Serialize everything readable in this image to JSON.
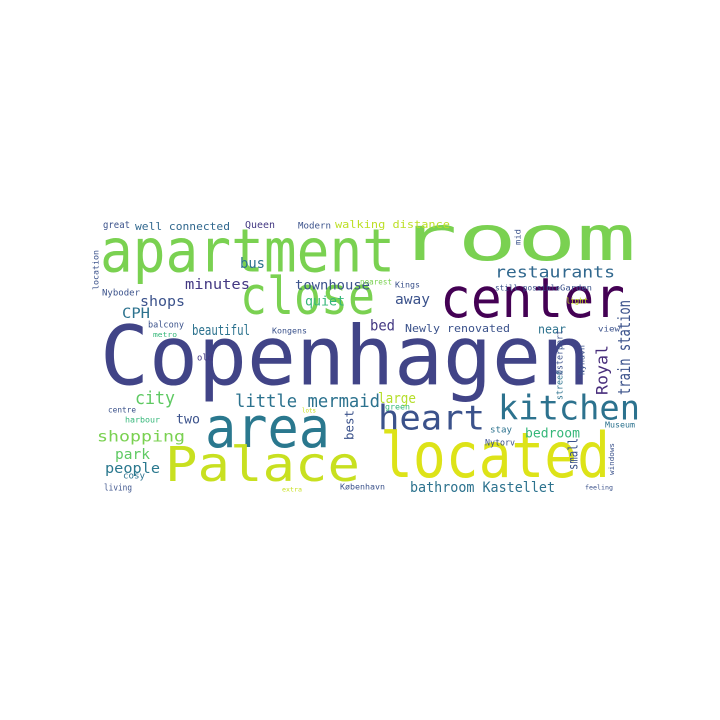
{
  "chart_data": {
    "type": "wordcloud",
    "words": [
      {
        "text": "Copenhagen",
        "size": 82,
        "color": "#414487",
        "vertical": false
      },
      {
        "text": "apartment",
        "size": 60,
        "color": "#7ad151",
        "vertical": false
      },
      {
        "text": "room",
        "size": 62,
        "color": "#7ad151",
        "vertical": false
      },
      {
        "text": "located",
        "size": 62,
        "color": "#dde318",
        "vertical": false
      },
      {
        "text": "center",
        "size": 55,
        "color": "#440154",
        "vertical": false
      },
      {
        "text": "close",
        "size": 52,
        "color": "#7ad151",
        "vertical": false
      },
      {
        "text": "area",
        "size": 56,
        "color": "#2a788e",
        "vertical": false
      },
      {
        "text": "Palace",
        "size": 48,
        "color": "#c8e020",
        "vertical": false
      },
      {
        "text": "kitchen",
        "size": 34,
        "color": "#2c728e",
        "vertical": false
      },
      {
        "text": "heart",
        "size": 34,
        "color": "#3b528b",
        "vertical": false
      },
      {
        "text": "little mermaid",
        "size": 18,
        "color": "#2c728e",
        "vertical": false
      },
      {
        "text": "restaurants",
        "size": 16,
        "color": "#31688e",
        "vertical": false
      },
      {
        "text": "train station",
        "size": 17,
        "color": "#3b528b",
        "vertical": true
      },
      {
        "text": "Royal",
        "size": 16,
        "color": "#472d7b",
        "vertical": true
      },
      {
        "text": "bathroom Kastellet",
        "size": 14,
        "color": "#2c728e",
        "vertical": false
      },
      {
        "text": "shopping",
        "size": 15,
        "color": "#7ad151",
        "vertical": false
      },
      {
        "text": "city",
        "size": 18,
        "color": "#5ec962",
        "vertical": false
      },
      {
        "text": "people",
        "size": 14,
        "color": "#2a788e",
        "vertical": false
      },
      {
        "text": "park",
        "size": 14,
        "color": "#5ec962",
        "vertical": false
      },
      {
        "text": "minutes",
        "size": 14,
        "color": "#443983",
        "vertical": false
      },
      {
        "text": "townhouse",
        "size": 13,
        "color": "#3b528b",
        "vertical": false
      },
      {
        "text": "walking distance",
        "size": 11,
        "color": "#bddf26",
        "vertical": false
      },
      {
        "text": "well connected",
        "size": 11,
        "color": "#31688e",
        "vertical": false
      },
      {
        "text": "beautiful",
        "size": 14,
        "color": "#2c728e",
        "vertical": false
      },
      {
        "text": "shops",
        "size": 14,
        "color": "#3b528b",
        "vertical": false
      },
      {
        "text": "bus",
        "size": 14,
        "color": "#2c728e",
        "vertical": false
      },
      {
        "text": "quiet",
        "size": 13,
        "color": "#35b779",
        "vertical": false
      },
      {
        "text": "away",
        "size": 14,
        "color": "#3b528b",
        "vertical": false
      },
      {
        "text": "bed",
        "size": 15,
        "color": "#443983",
        "vertical": false
      },
      {
        "text": "Newly renovated",
        "size": 11,
        "color": "#3b528b",
        "vertical": false
      },
      {
        "text": "CPH",
        "size": 14,
        "color": "#2c728e",
        "vertical": false
      },
      {
        "text": "large",
        "size": 14,
        "color": "#b5de2b",
        "vertical": false
      },
      {
        "text": "near",
        "size": 12,
        "color": "#2c728e",
        "vertical": false
      },
      {
        "text": "bedroom",
        "size": 13,
        "color": "#35b779",
        "vertical": false
      },
      {
        "text": "small",
        "size": 13,
        "color": "#3b528b",
        "vertical": true
      },
      {
        "text": "two",
        "size": 13,
        "color": "#3b528b",
        "vertical": false
      },
      {
        "text": "best",
        "size": 12,
        "color": "#3b528b",
        "vertical": true
      },
      {
        "text": "Queen",
        "size": 10,
        "color": "#443983",
        "vertical": false
      },
      {
        "text": "Modern",
        "size": 9,
        "color": "#3b528b",
        "vertical": false
      },
      {
        "text": "great",
        "size": 10,
        "color": "#3b528b",
        "vertical": false
      },
      {
        "text": "Nyboder",
        "size": 9,
        "color": "#3b528b",
        "vertical": false
      },
      {
        "text": "balcony",
        "size": 9,
        "color": "#3b528b",
        "vertical": false
      },
      {
        "text": "living",
        "size": 9,
        "color": "#3b528b",
        "vertical": false
      },
      {
        "text": "cosy",
        "size": 9,
        "color": "#2c728e",
        "vertical": false
      },
      {
        "text": "centre",
        "size": 8,
        "color": "#3b528b",
        "vertical": false
      },
      {
        "text": "harbour",
        "size": 8,
        "color": "#35b779",
        "vertical": false
      },
      {
        "text": "old",
        "size": 9,
        "color": "#443983",
        "vertical": false
      },
      {
        "text": "Museum",
        "size": 8,
        "color": "#2c728e",
        "vertical": false
      },
      {
        "text": "stay",
        "size": 9,
        "color": "#2c728e",
        "vertical": false
      },
      {
        "text": "street",
        "size": 9,
        "color": "#2c728e",
        "vertical": true
      },
      {
        "text": "Nytorv",
        "size": 9,
        "color": "#3b528b",
        "vertical": false
      },
      {
        "text": "København",
        "size": 8,
        "color": "#3b528b",
        "vertical": false
      },
      {
        "text": "green",
        "size": 8,
        "color": "#35b779",
        "vertical": false
      },
      {
        "text": "Kongens",
        "size": 8,
        "color": "#3b528b",
        "vertical": false
      },
      {
        "text": "Garden",
        "size": 8,
        "color": "#3b528b",
        "vertical": false
      },
      {
        "text": "light",
        "size": 8,
        "color": "#c8e020",
        "vertical": false
      },
      {
        "text": "view",
        "size": 8,
        "color": "#3b528b",
        "vertical": false
      },
      {
        "text": "Kings",
        "size": 8,
        "color": "#3b528b",
        "vertical": false
      },
      {
        "text": "nearest",
        "size": 8,
        "color": "#7ad151",
        "vertical": false
      },
      {
        "text": "still possible",
        "size": 8,
        "color": "#3b528b",
        "vertical": false
      },
      {
        "text": "Østerport",
        "size": 9,
        "color": "#3b528b",
        "vertical": true
      },
      {
        "text": "metro",
        "size": 7,
        "color": "#35b779",
        "vertical": false
      },
      {
        "text": "Nyhavn",
        "size": 8,
        "color": "#3b528b",
        "vertical": true
      },
      {
        "text": "mid",
        "size": 8,
        "color": "#3b528b",
        "vertical": true
      },
      {
        "text": "location",
        "size": 8,
        "color": "#3b528b",
        "vertical": true
      },
      {
        "text": "feeling",
        "size": 6,
        "color": "#3b528b",
        "vertical": false
      },
      {
        "text": "windows",
        "size": 7,
        "color": "#3b528b",
        "vertical": true
      },
      {
        "text": "extra",
        "size": 6,
        "color": "#c8e020",
        "vertical": false
      },
      {
        "text": "lots",
        "size": 6,
        "color": "#c8e020",
        "vertical": false
      }
    ]
  }
}
